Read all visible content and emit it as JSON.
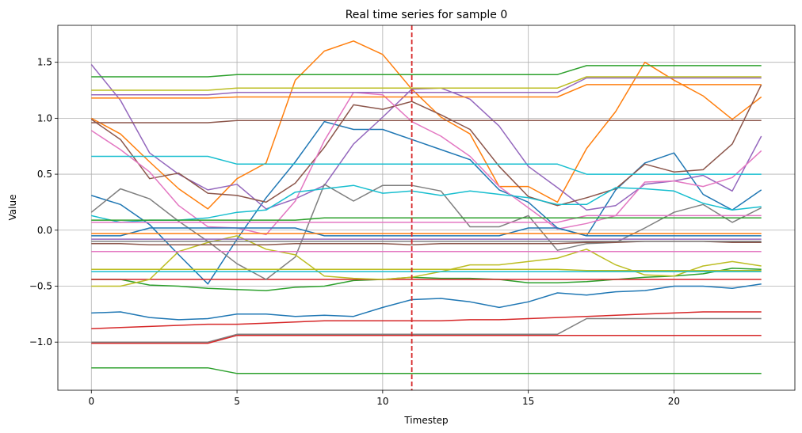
{
  "chart_data": {
    "type": "line",
    "title": "Real time series for sample 0",
    "xlabel": "Timestep",
    "ylabel": "Value",
    "xlim": [
      -1.15,
      24.15
    ],
    "ylim": [
      -1.43,
      1.83
    ],
    "xticks": [
      0,
      5,
      10,
      15,
      20
    ],
    "yticks": [
      -1.0,
      -0.5,
      0.0,
      0.5,
      1.0,
      1.5
    ],
    "grid": true,
    "marker_line": {
      "x": 11,
      "color": "#d62728",
      "style": "dashed"
    },
    "x": [
      0,
      1,
      2,
      3,
      4,
      5,
      6,
      7,
      8,
      9,
      10,
      11,
      12,
      13,
      14,
      15,
      16,
      17,
      18,
      19,
      20,
      21,
      22,
      23
    ],
    "series": [
      {
        "color": "#1f77b4",
        "values": [
          0.31,
          0.23,
          0.05,
          -0.22,
          -0.48,
          -0.08,
          0.29,
          0.61,
          0.97,
          0.9,
          0.9,
          0.81,
          0.72,
          0.63,
          0.36,
          0.25,
          0.02,
          -0.05,
          0.36,
          0.6,
          0.69,
          0.32,
          0.18,
          0.36
        ]
      },
      {
        "color": "#ff7f0e",
        "values": [
          1.0,
          0.86,
          0.61,
          0.37,
          0.19,
          0.46,
          0.6,
          1.34,
          1.6,
          1.69,
          1.57,
          1.26,
          1.01,
          0.86,
          0.39,
          0.39,
          0.25,
          0.73,
          1.06,
          1.5,
          1.34,
          1.2,
          0.99,
          1.19
        ]
      },
      {
        "color": "#2ca02c",
        "values": [
          -0.44,
          -0.44,
          -0.49,
          -0.5,
          -0.52,
          -0.53,
          -0.54,
          -0.51,
          -0.5,
          -0.45,
          -0.44,
          -0.42,
          -0.43,
          -0.43,
          -0.44,
          -0.47,
          -0.47,
          -0.46,
          -0.44,
          -0.42,
          -0.41,
          -0.39,
          -0.34,
          -0.35
        ]
      },
      {
        "color": "#d62728",
        "values": [
          -0.44,
          -0.44,
          -0.44,
          -0.44,
          -0.44,
          -0.44,
          -0.44,
          -0.44,
          -0.44,
          -0.44,
          -0.44,
          -0.44,
          -0.44,
          -0.44,
          -0.44,
          -0.44,
          -0.44,
          -0.44,
          -0.44,
          -0.44,
          -0.44,
          -0.44,
          -0.44,
          -0.44
        ]
      },
      {
        "color": "#9467bd",
        "values": [
          1.48,
          1.16,
          0.69,
          0.5,
          0.36,
          0.41,
          0.19,
          0.28,
          0.4,
          0.77,
          1.01,
          1.26,
          1.27,
          1.17,
          0.93,
          0.57,
          0.38,
          0.18,
          0.22,
          0.41,
          0.44,
          0.49,
          0.35,
          0.84
        ]
      },
      {
        "color": "#8c564b",
        "values": [
          0.99,
          0.81,
          0.46,
          0.51,
          0.33,
          0.31,
          0.25,
          0.42,
          0.74,
          1.12,
          1.08,
          1.15,
          1.03,
          0.9,
          0.57,
          0.3,
          0.22,
          0.29,
          0.37,
          0.59,
          0.52,
          0.54,
          0.77,
          1.3
        ]
      },
      {
        "color": "#e377c2",
        "values": [
          0.89,
          0.72,
          0.52,
          0.22,
          0.03,
          0.02,
          -0.04,
          0.26,
          0.8,
          1.23,
          1.21,
          0.97,
          0.84,
          0.66,
          0.39,
          0.2,
          0.01,
          0.06,
          0.13,
          0.43,
          0.44,
          0.39,
          0.47,
          0.71
        ]
      },
      {
        "color": "#7f7f7f",
        "values": [
          0.16,
          0.37,
          0.28,
          0.08,
          -0.1,
          -0.3,
          -0.44,
          -0.24,
          0.41,
          0.26,
          0.4,
          0.4,
          0.35,
          0.03,
          0.03,
          0.13,
          -0.18,
          -0.12,
          -0.11,
          0.02,
          0.16,
          0.23,
          0.07,
          0.2
        ]
      },
      {
        "color": "#bcbd22",
        "values": [
          -0.5,
          -0.5,
          -0.44,
          -0.19,
          -0.11,
          -0.05,
          -0.17,
          -0.22,
          -0.41,
          -0.43,
          -0.44,
          -0.42,
          -0.37,
          -0.31,
          -0.31,
          -0.28,
          -0.25,
          -0.17,
          -0.31,
          -0.4,
          -0.41,
          -0.32,
          -0.28,
          -0.32
        ]
      },
      {
        "color": "#17becf",
        "values": [
          0.13,
          0.07,
          0.09,
          0.09,
          0.11,
          0.16,
          0.18,
          0.34,
          0.37,
          0.4,
          0.33,
          0.35,
          0.31,
          0.35,
          0.32,
          0.29,
          0.23,
          0.23,
          0.38,
          0.37,
          0.35,
          0.24,
          0.18,
          0.21
        ]
      },
      {
        "color": "#1f77b4",
        "values": [
          -0.74,
          -0.73,
          -0.78,
          -0.8,
          -0.79,
          -0.75,
          -0.75,
          -0.77,
          -0.76,
          -0.77,
          -0.69,
          -0.62,
          -0.61,
          -0.64,
          -0.69,
          -0.64,
          -0.56,
          -0.58,
          -0.55,
          -0.54,
          -0.5,
          -0.5,
          -0.52,
          -0.48
        ]
      },
      {
        "color": "#ff7f0e",
        "values": [
          1.18,
          1.18,
          1.18,
          1.18,
          1.18,
          1.19,
          1.19,
          1.19,
          1.19,
          1.19,
          1.19,
          1.19,
          1.19,
          1.19,
          1.19,
          1.19,
          1.19,
          1.3,
          1.3,
          1.3,
          1.3,
          1.3,
          1.3,
          1.3
        ]
      },
      {
        "color": "#2ca02c",
        "values": [
          1.37,
          1.37,
          1.37,
          1.37,
          1.37,
          1.39,
          1.39,
          1.39,
          1.39,
          1.39,
          1.39,
          1.39,
          1.39,
          1.39,
          1.39,
          1.39,
          1.39,
          1.47,
          1.47,
          1.47,
          1.47,
          1.47,
          1.47,
          1.47
        ]
      },
      {
        "color": "#d62728",
        "values": [
          -0.88,
          -0.87,
          -0.86,
          -0.85,
          -0.84,
          -0.84,
          -0.83,
          -0.82,
          -0.81,
          -0.81,
          -0.81,
          -0.81,
          -0.81,
          -0.8,
          -0.8,
          -0.79,
          -0.78,
          -0.77,
          -0.76,
          -0.75,
          -0.74,
          -0.73,
          -0.73,
          -0.73
        ]
      },
      {
        "color": "#9467bd",
        "values": [
          1.21,
          1.21,
          1.21,
          1.21,
          1.21,
          1.23,
          1.23,
          1.23,
          1.23,
          1.23,
          1.23,
          1.23,
          1.23,
          1.23,
          1.23,
          1.23,
          1.23,
          1.36,
          1.36,
          1.36,
          1.36,
          1.36,
          1.36,
          1.36
        ]
      },
      {
        "color": "#8c564b",
        "values": [
          0.96,
          0.96,
          0.96,
          0.96,
          0.96,
          0.98,
          0.98,
          0.98,
          0.98,
          0.98,
          0.98,
          0.98,
          0.98,
          0.98,
          0.98,
          0.98,
          0.98,
          0.98,
          0.98,
          0.98,
          0.98,
          0.98,
          0.98,
          0.98
        ]
      },
      {
        "color": "#e377c2",
        "values": [
          0.07,
          0.07,
          0.07,
          0.07,
          0.07,
          0.07,
          0.07,
          0.07,
          0.07,
          0.07,
          0.07,
          0.07,
          0.07,
          0.07,
          0.07,
          0.07,
          0.07,
          0.13,
          0.13,
          0.13,
          0.13,
          0.13,
          0.13,
          0.13
        ]
      },
      {
        "color": "#7f7f7f",
        "values": [
          -1.0,
          -1.0,
          -1.0,
          -1.0,
          -1.0,
          -0.93,
          -0.93,
          -0.93,
          -0.93,
          -0.93,
          -0.93,
          -0.93,
          -0.93,
          -0.93,
          -0.93,
          -0.93,
          -0.93,
          -0.79,
          -0.79,
          -0.79,
          -0.79,
          -0.79,
          -0.79,
          -0.79
        ]
      },
      {
        "color": "#bcbd22",
        "values": [
          1.25,
          1.25,
          1.25,
          1.25,
          1.25,
          1.27,
          1.27,
          1.27,
          1.27,
          1.27,
          1.27,
          1.27,
          1.27,
          1.27,
          1.27,
          1.27,
          1.27,
          1.37,
          1.37,
          1.37,
          1.37,
          1.37,
          1.37,
          1.37
        ]
      },
      {
        "color": "#17becf",
        "values": [
          0.66,
          0.66,
          0.66,
          0.66,
          0.66,
          0.59,
          0.59,
          0.59,
          0.59,
          0.59,
          0.59,
          0.59,
          0.59,
          0.59,
          0.59,
          0.59,
          0.59,
          0.5,
          0.5,
          0.5,
          0.5,
          0.5,
          0.5,
          0.5
        ]
      },
      {
        "color": "#1f77b4",
        "values": [
          -0.05,
          -0.05,
          0.02,
          0.02,
          0.02,
          0.02,
          0.02,
          0.02,
          -0.05,
          -0.05,
          -0.05,
          -0.05,
          -0.05,
          -0.05,
          -0.05,
          0.02,
          0.02,
          -0.05,
          -0.05,
          -0.05,
          -0.05,
          -0.05,
          -0.05,
          -0.05
        ]
      },
      {
        "color": "#ff7f0e",
        "values": [
          -0.03,
          -0.03,
          -0.03,
          -0.03,
          -0.03,
          -0.03,
          -0.03,
          -0.03,
          -0.03,
          -0.03,
          -0.03,
          -0.03,
          -0.03,
          -0.03,
          -0.03,
          -0.03,
          -0.03,
          -0.03,
          -0.03,
          -0.03,
          -0.03,
          -0.03,
          -0.03,
          -0.03
        ]
      },
      {
        "color": "#2ca02c",
        "values": [
          0.09,
          0.09,
          0.09,
          0.09,
          0.09,
          0.09,
          0.09,
          0.09,
          0.11,
          0.11,
          0.11,
          0.11,
          0.11,
          0.11,
          0.11,
          0.11,
          0.11,
          0.11,
          0.11,
          0.11,
          0.11,
          0.11,
          0.11,
          0.11
        ]
      },
      {
        "color": "#d62728",
        "values": [
          -1.01,
          -1.01,
          -1.01,
          -1.01,
          -1.01,
          -0.94,
          -0.94,
          -0.94,
          -0.94,
          -0.94,
          -0.94,
          -0.94,
          -0.94,
          -0.94,
          -0.94,
          -0.94,
          -0.94,
          -0.94,
          -0.94,
          -0.94,
          -0.94,
          -0.94,
          -0.94,
          -0.94
        ]
      },
      {
        "color": "#9467bd",
        "values": [
          -0.08,
          -0.08,
          -0.08,
          -0.08,
          -0.08,
          -0.08,
          -0.08,
          -0.08,
          -0.08,
          -0.08,
          -0.08,
          -0.08,
          -0.08,
          -0.08,
          -0.08,
          -0.08,
          -0.08,
          -0.08,
          -0.08,
          -0.08,
          -0.08,
          -0.08,
          -0.08,
          -0.08
        ]
      },
      {
        "color": "#8c564b",
        "values": [
          -0.12,
          -0.12,
          -0.13,
          -0.13,
          -0.13,
          -0.13,
          -0.13,
          -0.12,
          -0.12,
          -0.12,
          -0.12,
          -0.13,
          -0.12,
          -0.12,
          -0.12,
          -0.12,
          -0.12,
          -0.11,
          -0.11,
          -0.1,
          -0.1,
          -0.1,
          -0.11,
          -0.11
        ]
      },
      {
        "color": "#e377c2",
        "values": [
          -0.19,
          -0.19,
          -0.19,
          -0.19,
          -0.19,
          -0.19,
          -0.19,
          -0.19,
          -0.19,
          -0.19,
          -0.19,
          -0.19,
          -0.19,
          -0.19,
          -0.19,
          -0.19,
          -0.19,
          -0.19,
          -0.19,
          -0.19,
          -0.19,
          -0.19,
          -0.19,
          -0.19
        ]
      },
      {
        "color": "#7f7f7f",
        "values": [
          -0.1,
          -0.1,
          -0.1,
          -0.1,
          -0.1,
          -0.1,
          -0.1,
          -0.1,
          -0.1,
          -0.1,
          -0.1,
          -0.1,
          -0.1,
          -0.1,
          -0.1,
          -0.1,
          -0.1,
          -0.1,
          -0.1,
          -0.1,
          -0.1,
          -0.1,
          -0.1,
          -0.1
        ]
      },
      {
        "color": "#bcbd22",
        "values": [
          -0.35,
          -0.35,
          -0.35,
          -0.35,
          -0.35,
          -0.35,
          -0.35,
          -0.35,
          -0.35,
          -0.35,
          -0.35,
          -0.35,
          -0.35,
          -0.35,
          -0.35,
          -0.35,
          -0.35,
          -0.36,
          -0.36,
          -0.36,
          -0.36,
          -0.36,
          -0.36,
          -0.36
        ]
      },
      {
        "color": "#17becf",
        "values": [
          -0.37,
          -0.37,
          -0.37,
          -0.37,
          -0.37,
          -0.37,
          -0.37,
          -0.37,
          -0.37,
          -0.37,
          -0.37,
          -0.37,
          -0.37,
          -0.37,
          -0.37,
          -0.37,
          -0.37,
          -0.37,
          -0.37,
          -0.37,
          -0.37,
          -0.37,
          -0.37,
          -0.37
        ]
      },
      {
        "color": "#2ca02c",
        "values": [
          -1.23,
          -1.23,
          -1.23,
          -1.23,
          -1.23,
          -1.28,
          -1.28,
          -1.28,
          -1.28,
          -1.28,
          -1.28,
          -1.28,
          -1.28,
          -1.28,
          -1.28,
          -1.28,
          -1.28,
          -1.28,
          -1.28,
          -1.28,
          -1.28,
          -1.28,
          -1.28,
          -1.28
        ]
      }
    ]
  }
}
